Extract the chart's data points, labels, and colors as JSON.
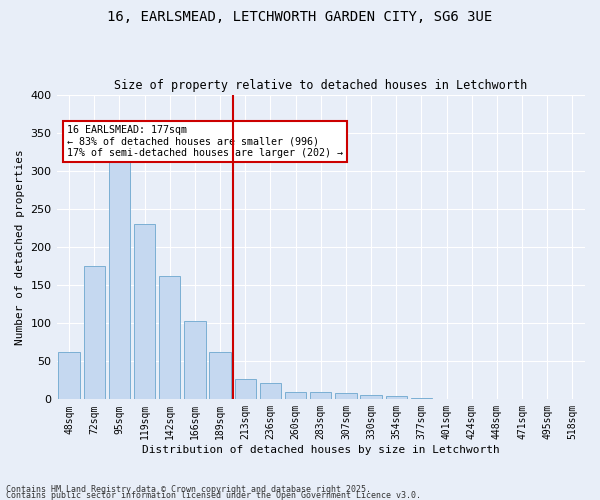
{
  "title_line1": "16, EARLSMEAD, LETCHWORTH GARDEN CITY, SG6 3UE",
  "title_line2": "Size of property relative to detached houses in Letchworth",
  "xlabel": "Distribution of detached houses by size in Letchworth",
  "ylabel": "Number of detached properties",
  "bar_color": "#c5d8f0",
  "bar_edge_color": "#7bafd4",
  "background_color": "#e8eef8",
  "categories": [
    "48sqm",
    "72sqm",
    "95sqm",
    "119sqm",
    "142sqm",
    "166sqm",
    "189sqm",
    "213sqm",
    "236sqm",
    "260sqm",
    "283sqm",
    "307sqm",
    "330sqm",
    "354sqm",
    "377sqm",
    "401sqm",
    "424sqm",
    "448sqm",
    "471sqm",
    "495sqm",
    "518sqm"
  ],
  "values": [
    62,
    175,
    318,
    230,
    162,
    103,
    62,
    27,
    22,
    9,
    10,
    8,
    6,
    4,
    2,
    1,
    0,
    0,
    1,
    0,
    1
  ],
  "vline_x": 6.5,
  "vline_color": "#cc0000",
  "annotation_text": "16 EARLSMEAD: 177sqm\n← 83% of detached houses are smaller (996)\n17% of semi-detached houses are larger (202) →",
  "annotation_box_color": "#ffffff",
  "annotation_box_edge": "#cc0000",
  "footer1": "Contains HM Land Registry data © Crown copyright and database right 2025.",
  "footer2": "Contains public sector information licensed under the Open Government Licence v3.0.",
  "ylim": [
    0,
    400
  ],
  "yticks": [
    0,
    50,
    100,
    150,
    200,
    250,
    300,
    350,
    400
  ]
}
